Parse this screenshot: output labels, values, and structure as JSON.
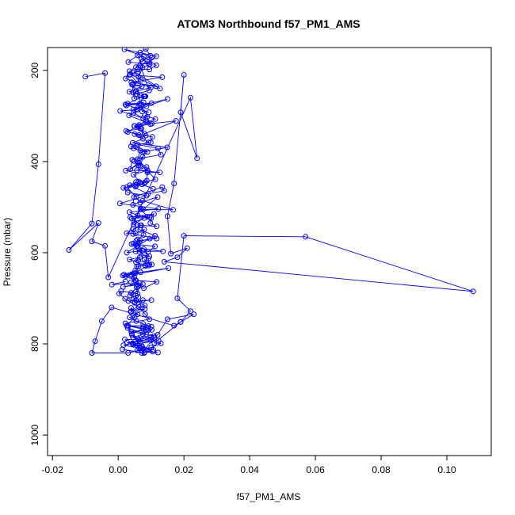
{
  "chart_data": {
    "type": "scatter",
    "title": "ATOM3 Northbound f57_PM1_AMS",
    "xlabel": "f57_PM1_AMS",
    "ylabel": "Pressure (mbar)",
    "xlim": [
      -0.0215,
      0.1135
    ],
    "ylim": [
      1045,
      150
    ],
    "y_reversed": true,
    "x_ticks": [
      -0.02,
      0.0,
      0.02,
      0.04,
      0.06,
      0.08,
      0.1
    ],
    "x_tick_labels": [
      "-0.02",
      "0.00",
      "0.02",
      "0.04",
      "0.06",
      "0.08",
      "0.10"
    ],
    "y_ticks": [
      200,
      400,
      600,
      800,
      1000
    ],
    "y_tick_labels": [
      "200",
      "400",
      "600",
      "800",
      "1000"
    ],
    "grid": false,
    "connected": true,
    "series": [
      {
        "color": "#0000ff",
        "marker": "open-circle",
        "x": [
          0.0075,
          0.0098,
          0.0084,
          0.0067,
          0.0102,
          0.0093,
          0.0031,
          0.0059,
          0.0074,
          0.0062,
          0.0069,
          0.0048,
          0.0127,
          0.0037,
          0.006,
          0.0068,
          0.0094,
          0.0056,
          0.0042,
          0.0046,
          0.0049,
          0.0083,
          0.0078,
          0.0022,
          0.0093,
          0.0073,
          0.007,
          0.015,
          0.0086,
          0.0033,
          0.0098,
          0.0088,
          0.0081,
          0.0113,
          0.0049,
          0.008,
          0.0176,
          0.0064,
          0.0067,
          0.0084,
          0.005,
          0.0075,
          0.0044,
          0.0149,
          0.0074,
          0.0055,
          0.0089,
          0.0067,
          0.0059,
          0.0074,
          0.0062,
          0.006,
          0.0086,
          0.0057,
          0.0127,
          0.0089,
          0.0087,
          0.0072,
          0.0106,
          0.0054,
          0.0035,
          0.0091,
          0.014,
          0.0134,
          0.0048,
          0.0045,
          0.0074,
          0.0167,
          0.0069,
          0.0089,
          0.0037,
          0.0109,
          0.01,
          0.0098,
          0.0117,
          0.0067,
          0.0046,
          0.0045,
          0.0117,
          0.0055,
          0.0057,
          0.0041,
          0.0112,
          0.0091,
          0.0078,
          0.0095,
          0.0079,
          0.0066,
          0.0035,
          0.0082,
          0.0057,
          0.0052,
          0.0018,
          0.0153,
          0.0041,
          0.0054,
          0.0117,
          0.0078,
          0.0061,
          0.0039,
          0.0036,
          0.0056,
          0.0061,
          0.0048,
          0.005,
          0.0075,
          0.0062,
          0.0039,
          0.0039,
          0.0059,
          0.0035,
          0.0055,
          0.0076,
          0.0101,
          0.0027,
          0.0102,
          0.0075,
          0.0045,
          0.006,
          0.01,
          0.0046,
          0.0027,
          0.0123,
          0.0053,
          0.0079,
          0.0013,
          0.0072,
          0.011,
          0.0016,
          0.0064,
          0.0105,
          0.0073,
          0.0042,
          0.0062,
          0.0109,
          0.004,
          0.0092,
          0.0092,
          0.003,
          0.0022,
          0.0095,
          0.0082,
          0.0063,
          0.0021,
          0.0003,
          0.0009,
          0.0059,
          0.0065,
          -0.0019,
          0.0022
        ],
        "y": [
          180,
          168,
          153,
          161,
          172,
          186,
          182,
          167,
          194,
          215,
          221,
          202,
          240,
          209,
          229,
          191,
          244,
          252,
          231,
          249,
          262,
          257,
          257,
          275,
          292,
          290,
          277,
          263,
          279,
          299,
          318,
          302,
          299,
          307,
          322,
          339,
          311,
          320,
          328,
          343,
          340,
          350,
          359,
          369,
          379,
          366,
          379,
          376,
          395,
          390,
          408,
          402,
          412,
          419,
          424,
          424,
          442,
          450,
          460,
          445,
          452,
          471,
          464,
          456,
          478,
          495,
          486,
          506,
          505,
          521,
          522,
          515,
          524,
          535,
          542,
          540,
          548,
          559,
          569,
          574,
          586,
          581,
          586,
          598,
          592,
          608,
          605,
          610,
          615,
          628,
          630,
          639,
          648,
          634,
          649,
          661,
          664,
          678,
          674,
          688,
          694,
          676,
          697,
          701,
          710,
          704,
          714,
          730,
          721,
          735,
          742,
          750,
          756,
          762,
          760,
          769,
          779,
          786,
          788,
          785,
          802,
          797,
          793,
          800,
          820,
          812,
          820,
          786,
          803,
          809,
          817,
          806,
          780,
          791,
          783,
          773,
          770,
          761,
          760,
          755,
          746,
          735,
          719,
          701,
          690,
          684,
          690,
          667,
          670,
          663
        ]
      },
      {
        "color": "#0000ff",
        "marker": "open-circle",
        "x": [
          0.0039,
          0.0052,
          0.0014,
          0.0068,
          0.0048,
          0.0095,
          0.0081,
          0.0083,
          0.0054,
          0.0074,
          0.0026,
          0.0059,
          0.0096,
          0.0046,
          0.0057,
          0.0112,
          0.0067,
          0.0047,
          0.0079,
          0.0049,
          0.0068,
          0.0076,
          0.012,
          0.0067,
          0.0055,
          0.0026,
          0.0062,
          0.0083,
          0.0113,
          0.009,
          0.0061,
          0.0037,
          0.0043,
          0.013,
          0.0121,
          0.006,
          0.0099,
          0.0104,
          0.0029,
          0.0084,
          0.0076,
          0.0006,
          0.0059,
          0.0077,
          0.0025,
          0.0064,
          0.0066,
          0.0045,
          0.0115,
          0.004,
          0.0134,
          0.0035,
          0.0096,
          0.0071,
          0.0054,
          0.0094,
          0.0116,
          0.0019,
          0.0078,
          0.0116,
          0.0095,
          0.006,
          0.0034,
          0.0023,
          0.0099,
          0.0054,
          0.0072,
          0.0034,
          0.008,
          0.0046,
          0.0101,
          0.0029,
          0.007,
          0.0047,
          0.0102,
          0.006,
          0.005,
          0.0071,
          0.0024,
          0.0063,
          0.0092,
          0.0039,
          0.0047,
          0.008,
          0.0068,
          0.0048,
          0.0061,
          0.0023,
          0.0089,
          0.0047,
          0.0067,
          0.0056,
          0.0052,
          0.0079,
          0.0016,
          0.0029,
          0.0086,
          0.0005,
          0.0122,
          0.0034,
          0.0059,
          0.0096,
          0.0041,
          0.007,
          0.0026,
          0.0053,
          0.0079,
          0.0077,
          0.0059,
          0.0066,
          0.0062,
          0.0136,
          0.0053,
          0.0065,
          0.0092,
          0.0093,
          0.0102,
          0.0061,
          0.0062,
          0.0052,
          0.0024,
          0.0049,
          0.0057,
          0.0015,
          0.0075,
          0.0045,
          0.0051,
          0.0101,
          0.0031,
          0.0054,
          0.0081,
          0.0038,
          0.0081,
          0.0047,
          0.005,
          0.0026,
          0.0085,
          0.0076,
          0.0076,
          0.0041,
          0.0029,
          0.0085,
          0.0045,
          0.0071,
          0.0044,
          0.0107,
          0.0067,
          0.0058,
          0.0121,
          0.008
        ],
        "y": [
          665,
          660,
          650,
          643,
          646,
          626,
          615,
          629,
          621,
          595,
          600,
          585,
          569,
          580,
          585,
          563,
          550,
          538,
          524,
          533,
          503,
          505,
          478,
          490,
          478,
          456,
          444,
          445,
          439,
          421,
          403,
          417,
          396,
          385,
          371,
          363,
          358,
          346,
          335,
          311,
          305,
          289,
          286,
          270,
          277,
          274,
          254,
          232,
          235,
          226,
          215,
          210,
          187,
          175,
          193,
          181,
          169,
          154,
          170,
          189,
          198,
          198,
          202,
          218,
          238,
          246,
          235,
          247,
          257,
          286,
          272,
          273,
          276,
          293,
          317,
          323,
          322,
          328,
          333,
          342,
          358,
          367,
          371,
          379,
          409,
          399,
          408,
          420,
          419,
          429,
          446,
          452,
          455,
          448,
          458,
          468,
          475,
          492,
          504,
          511,
          518,
          522,
          525,
          540,
          557,
          558,
          549,
          561,
          571,
          573,
          590,
          597,
          597,
          598,
          613,
          628,
          626,
          617,
          630,
          645,
          651,
          654,
          669,
          675,
          669,
          692,
          708,
          704,
          706,
          704,
          716,
          729,
          723,
          737,
          742,
          760,
          769,
          763,
          767,
          777,
          765,
          779,
          800,
          804,
          799,
          813,
          807,
          814,
          819,
          818
        ]
      },
      {
        "color": "#0000ff",
        "marker": "open-circle",
        "x": [
          -0.01,
          -0.004,
          -0.006,
          -0.008,
          -0.015,
          -0.006,
          -0.008,
          -0.004,
          -0.003,
          0.022,
          0.024,
          0.019,
          0.02,
          0.017,
          0.015,
          0.016,
          0.021,
          0.018,
          0.014,
          0.108,
          0.057,
          0.02,
          0.018,
          0.022,
          0.019,
          0.017,
          -0.002,
          -0.005,
          -0.007,
          -0.008,
          0.003,
          0.01,
          0.013,
          0.011,
          0.019,
          0.023,
          0.015,
          0.012,
          0.01,
          0.002
        ],
        "y": [
          214,
          206,
          406,
          536,
          594,
          535,
          575,
          585,
          654,
          260,
          393,
          292,
          210,
          448,
          520,
          602,
          590,
          610,
          620,
          685,
          565,
          563,
          700,
          728,
          752,
          760,
          720,
          750,
          794,
          820,
          820,
          808,
          799,
          798,
          752,
          735,
          746,
          780,
          792,
          790
        ]
      }
    ]
  }
}
